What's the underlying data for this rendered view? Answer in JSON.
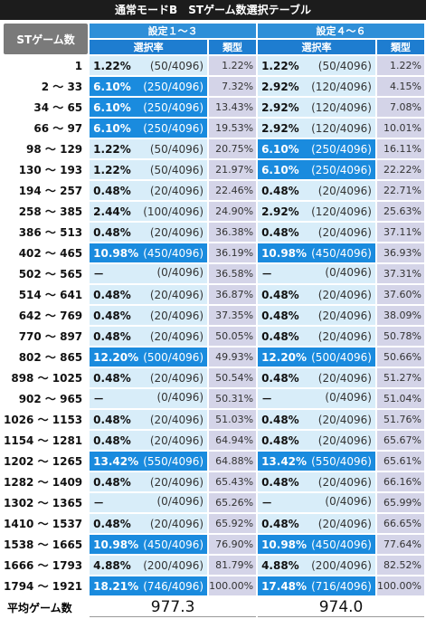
{
  "title": "通常モードB　STゲーム数選択テーブル",
  "header": {
    "st_label": "STゲーム数",
    "set_a": "設定１～３",
    "set_b": "設定４～６",
    "sel_label": "選択率",
    "cum_label": "類型"
  },
  "rows": [
    {
      "range": "1",
      "a_pct": "1.22%",
      "a_frac": "(50/4096)",
      "a_cum": "1.22%",
      "b_pct": "1.22%",
      "b_frac": "(50/4096)",
      "b_cum": "1.22%"
    },
    {
      "range": "2 ～ 33",
      "a_pct": "6.10%",
      "a_frac": "(250/4096)",
      "a_cum": "7.32%",
      "b_pct": "2.92%",
      "b_frac": "(120/4096)",
      "b_cum": "4.15%"
    },
    {
      "range": "34 ～ 65",
      "a_pct": "6.10%",
      "a_frac": "(250/4096)",
      "a_cum": "13.43%",
      "b_pct": "2.92%",
      "b_frac": "(120/4096)",
      "b_cum": "7.08%"
    },
    {
      "range": "66 ～ 97",
      "a_pct": "6.10%",
      "a_frac": "(250/4096)",
      "a_cum": "19.53%",
      "b_pct": "2.92%",
      "b_frac": "(120/4096)",
      "b_cum": "10.01%"
    },
    {
      "range": "98 ～ 129",
      "a_pct": "1.22%",
      "a_frac": "(50/4096)",
      "a_cum": "20.75%",
      "b_pct": "6.10%",
      "b_frac": "(250/4096)",
      "b_cum": "16.11%"
    },
    {
      "range": "130 ～ 193",
      "a_pct": "1.22%",
      "a_frac": "(50/4096)",
      "a_cum": "21.97%",
      "b_pct": "6.10%",
      "b_frac": "(250/4096)",
      "b_cum": "22.22%"
    },
    {
      "range": "194 ～ 257",
      "a_pct": "0.48%",
      "a_frac": "(20/4096)",
      "a_cum": "22.46%",
      "b_pct": "0.48%",
      "b_frac": "(20/4096)",
      "b_cum": "22.71%"
    },
    {
      "range": "258 ～ 385",
      "a_pct": "2.44%",
      "a_frac": "(100/4096)",
      "a_cum": "24.90%",
      "b_pct": "2.92%",
      "b_frac": "(120/4096)",
      "b_cum": "25.63%"
    },
    {
      "range": "386 ～ 513",
      "a_pct": "0.48%",
      "a_frac": "(20/4096)",
      "a_cum": "36.38%",
      "b_pct": "0.48%",
      "b_frac": "(20/4096)",
      "b_cum": "37.11%"
    },
    {
      "range": "402 ～ 465",
      "a_pct": "10.98%",
      "a_frac": "(450/4096)",
      "a_cum": "36.19%",
      "b_pct": "10.98%",
      "b_frac": "(450/4096)",
      "b_cum": "36.93%"
    },
    {
      "range": "502 ～ 565",
      "a_pct": "－",
      "a_frac": "(0/4096)",
      "a_cum": "36.58%",
      "b_pct": "－",
      "b_frac": "(0/4096)",
      "b_cum": "37.31%"
    },
    {
      "range": "514 ～ 641",
      "a_pct": "0.48%",
      "a_frac": "(20/4096)",
      "a_cum": "36.87%",
      "b_pct": "0.48%",
      "b_frac": "(20/4096)",
      "b_cum": "37.60%"
    },
    {
      "range": "642 ～ 769",
      "a_pct": "0.48%",
      "a_frac": "(20/4096)",
      "a_cum": "37.35%",
      "b_pct": "0.48%",
      "b_frac": "(20/4096)",
      "b_cum": "38.09%"
    },
    {
      "range": "770 ～ 897",
      "a_pct": "0.48%",
      "a_frac": "(20/4096)",
      "a_cum": "50.05%",
      "b_pct": "0.48%",
      "b_frac": "(20/4096)",
      "b_cum": "50.78%"
    },
    {
      "range": "802 ～ 865",
      "a_pct": "12.20%",
      "a_frac": "(500/4096)",
      "a_cum": "49.93%",
      "b_pct": "12.20%",
      "b_frac": "(500/4096)",
      "b_cum": "50.66%"
    },
    {
      "range": "898 ～ 1025",
      "a_pct": "0.48%",
      "a_frac": "(20/4096)",
      "a_cum": "50.54%",
      "b_pct": "0.48%",
      "b_frac": "(20/4096)",
      "b_cum": "51.27%"
    },
    {
      "range": "902 ～ 965",
      "a_pct": "－",
      "a_frac": "(0/4096)",
      "a_cum": "50.31%",
      "b_pct": "－",
      "b_frac": "(0/4096)",
      "b_cum": "51.04%"
    },
    {
      "range": "1026 ～ 1153",
      "a_pct": "0.48%",
      "a_frac": "(20/4096)",
      "a_cum": "51.03%",
      "b_pct": "0.48%",
      "b_frac": "(20/4096)",
      "b_cum": "51.76%"
    },
    {
      "range": "1154 ～ 1281",
      "a_pct": "0.48%",
      "a_frac": "(20/4096)",
      "a_cum": "64.94%",
      "b_pct": "0.48%",
      "b_frac": "(20/4096)",
      "b_cum": "65.67%"
    },
    {
      "range": "1202 ～ 1265",
      "a_pct": "13.42%",
      "a_frac": "(550/4096)",
      "a_cum": "64.88%",
      "b_pct": "13.42%",
      "b_frac": "(550/4096)",
      "b_cum": "65.61%"
    },
    {
      "range": "1282 ～ 1409",
      "a_pct": "0.48%",
      "a_frac": "(20/4096)",
      "a_cum": "65.43%",
      "b_pct": "0.48%",
      "b_frac": "(20/4096)",
      "b_cum": "66.16%"
    },
    {
      "range": "1302 ～ 1365",
      "a_pct": "－",
      "a_frac": "(0/4096)",
      "a_cum": "65.26%",
      "b_pct": "－",
      "b_frac": "(0/4096)",
      "b_cum": "65.99%"
    },
    {
      "range": "1410 ～ 1537",
      "a_pct": "0.48%",
      "a_frac": "(20/4096)",
      "a_cum": "65.92%",
      "b_pct": "0.48%",
      "b_frac": "(20/4096)",
      "b_cum": "66.65%"
    },
    {
      "range": "1538 ～ 1665",
      "a_pct": "10.98%",
      "a_frac": "(450/4096)",
      "a_cum": "76.90%",
      "b_pct": "10.98%",
      "b_frac": "(450/4096)",
      "b_cum": "77.64%"
    },
    {
      "range": "1666 ～ 1793",
      "a_pct": "4.88%",
      "a_frac": "(200/4096)",
      "a_cum": "81.79%",
      "b_pct": "4.88%",
      "b_frac": "(200/4096)",
      "b_cum": "82.52%"
    },
    {
      "range": "1794 ～ 1921",
      "a_pct": "18.21%",
      "a_frac": "(746/4096)",
      "a_cum": "100.00%",
      "b_pct": "17.48%",
      "b_frac": "(716/4096)",
      "b_cum": "100.00%"
    }
  ],
  "highlight_a": [
    1,
    2,
    3,
    9,
    14,
    19,
    23,
    25
  ],
  "highlight_b": [
    4,
    5,
    9,
    14,
    19,
    23,
    25
  ],
  "average": {
    "label": "平均ゲーム数",
    "a": "977.3",
    "b": "974.0"
  },
  "colors": {
    "highlight": "#1a8bde",
    "light": "#d8edf9",
    "cum": "#d4d4e8",
    "header": "#1e7dd0"
  }
}
